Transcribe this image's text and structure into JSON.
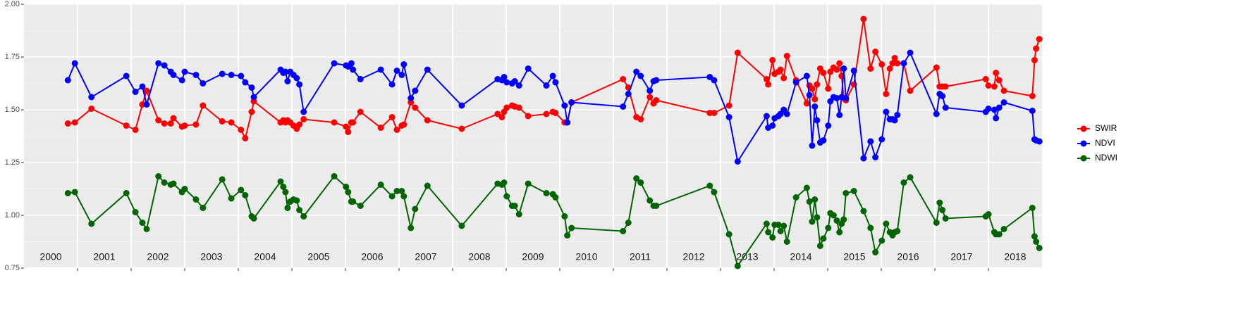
{
  "chart_data": {
    "type": "line",
    "year_labels": [
      "2000",
      "2001",
      "2002",
      "2003",
      "2004",
      "2005",
      "2006",
      "2007",
      "2008",
      "2009",
      "2010",
      "2011",
      "2012",
      "2013",
      "2014",
      "2015",
      "2016",
      "2017",
      "2018"
    ],
    "x": [
      2000.82,
      2000.95,
      2001.26,
      2001.91,
      2002.08,
      2002.21,
      2002.29,
      2002.51,
      2002.62,
      2002.74,
      2002.79,
      2002.95,
      2003.0,
      2003.21,
      2003.34,
      2003.7,
      2003.87,
      2004.05,
      2004.13,
      2004.25,
      2004.29,
      2004.79,
      2004.84,
      2004.88,
      2004.92,
      2004.97,
      2005.03,
      2005.09,
      2005.14,
      2005.22,
      2005.79,
      2006.01,
      2006.05,
      2006.11,
      2006.14,
      2006.28,
      2006.66,
      2006.87,
      2006.96,
      2007.05,
      2007.09,
      2007.22,
      2007.3,
      2007.53,
      2008.17,
      2008.84,
      2008.92,
      2008.96,
      2009.01,
      2009.11,
      2009.16,
      2009.24,
      2009.41,
      2009.75,
      2009.87,
      2009.92,
      2010.09,
      2010.14,
      2010.22,
      2011.18,
      2011.28,
      2011.43,
      2011.51,
      2011.68,
      2011.75,
      2011.8,
      2012.8,
      2012.88,
      2013.16,
      2013.32,
      2013.86,
      2013.89,
      2013.97,
      2014.01,
      2014.08,
      2014.12,
      2014.18,
      2014.24,
      2014.41,
      2014.61,
      2014.66,
      2014.71,
      2014.76,
      2014.8,
      2014.86,
      2014.92,
      2015.01,
      2015.05,
      2015.11,
      2015.17,
      2015.22,
      2015.26,
      2015.3,
      2015.34,
      2015.49,
      2015.67,
      2015.8,
      2015.89,
      2016.01,
      2016.09,
      2016.16,
      2016.21,
      2016.25,
      2016.3,
      2016.42,
      2016.54,
      2017.03,
      2017.09,
      2017.14,
      2017.2,
      2017.95,
      2018.0,
      2018.11,
      2018.14,
      2018.2,
      2018.29,
      2018.82,
      2018.86,
      2018.89,
      2018.95
    ],
    "series": [
      {
        "name": "SWIR",
        "color": "#ff0000",
        "values": [
          1.435,
          1.44,
          1.505,
          1.425,
          1.405,
          1.525,
          1.59,
          1.45,
          1.435,
          1.435,
          1.46,
          1.42,
          1.425,
          1.43,
          1.52,
          1.445,
          1.44,
          1.405,
          1.365,
          1.49,
          1.54,
          1.44,
          1.45,
          1.44,
          1.45,
          1.44,
          1.425,
          1.41,
          1.43,
          1.455,
          1.44,
          1.42,
          1.395,
          1.44,
          1.44,
          1.49,
          1.415,
          1.465,
          1.405,
          1.425,
          1.43,
          1.535,
          1.51,
          1.45,
          1.41,
          1.48,
          1.465,
          1.49,
          1.51,
          1.52,
          1.515,
          1.51,
          1.47,
          1.48,
          1.49,
          1.485,
          1.44,
          1.44,
          1.535,
          1.645,
          1.605,
          1.465,
          1.455,
          1.56,
          1.53,
          1.545,
          1.485,
          1.485,
          1.52,
          1.77,
          1.645,
          1.62,
          1.735,
          1.67,
          1.68,
          1.69,
          1.65,
          1.755,
          1.64,
          1.53,
          1.615,
          1.6,
          1.55,
          1.62,
          1.695,
          1.675,
          1.6,
          1.68,
          1.7,
          1.69,
          1.72,
          1.66,
          1.555,
          1.545,
          1.62,
          1.93,
          1.695,
          1.775,
          1.715,
          1.575,
          1.695,
          1.72,
          1.745,
          1.72,
          1.72,
          1.59,
          1.7,
          1.61,
          1.61,
          1.61,
          1.645,
          1.615,
          1.61,
          1.675,
          1.64,
          1.59,
          1.565,
          1.735,
          1.79,
          1.835
        ]
      },
      {
        "name": "NDVI",
        "color": "#0000ff",
        "values": [
          1.64,
          1.72,
          1.56,
          1.66,
          1.585,
          1.61,
          1.525,
          1.72,
          1.71,
          1.68,
          1.665,
          1.64,
          1.68,
          1.665,
          1.625,
          1.67,
          1.665,
          1.66,
          1.63,
          1.605,
          1.56,
          1.69,
          1.675,
          1.68,
          1.635,
          1.68,
          1.665,
          1.65,
          1.62,
          1.49,
          1.72,
          1.71,
          1.705,
          1.72,
          1.69,
          1.645,
          1.69,
          1.62,
          1.685,
          1.665,
          1.715,
          1.555,
          1.59,
          1.69,
          1.52,
          1.645,
          1.64,
          1.655,
          1.63,
          1.625,
          1.635,
          1.615,
          1.695,
          1.615,
          1.66,
          1.63,
          1.52,
          1.44,
          1.535,
          1.515,
          1.575,
          1.68,
          1.66,
          1.59,
          1.635,
          1.64,
          1.655,
          1.64,
          1.465,
          1.255,
          1.47,
          1.415,
          1.425,
          1.46,
          1.47,
          1.48,
          1.5,
          1.48,
          1.63,
          1.66,
          1.57,
          1.33,
          1.515,
          1.45,
          1.345,
          1.355,
          1.425,
          1.54,
          1.56,
          1.555,
          1.475,
          1.56,
          1.695,
          1.555,
          1.685,
          1.27,
          1.35,
          1.275,
          1.36,
          1.49,
          1.455,
          1.455,
          1.45,
          1.475,
          1.72,
          1.77,
          1.48,
          1.575,
          1.565,
          1.51,
          1.49,
          1.505,
          1.5,
          1.46,
          1.51,
          1.535,
          1.495,
          1.36,
          1.355,
          1.35
        ]
      },
      {
        "name": "NDWI",
        "color": "#006400",
        "values": [
          1.105,
          1.11,
          0.96,
          1.105,
          1.015,
          0.965,
          0.935,
          1.185,
          1.155,
          1.145,
          1.15,
          1.11,
          1.125,
          1.075,
          1.035,
          1.17,
          1.08,
          1.12,
          1.095,
          0.995,
          0.985,
          1.16,
          1.135,
          1.11,
          1.035,
          1.065,
          1.075,
          1.07,
          1.025,
          0.995,
          1.185,
          1.135,
          1.11,
          1.065,
          1.065,
          1.045,
          1.145,
          1.09,
          1.115,
          1.115,
          1.09,
          0.94,
          1.03,
          1.14,
          0.95,
          1.15,
          1.145,
          1.155,
          1.09,
          1.045,
          1.045,
          1.005,
          1.15,
          1.105,
          1.1,
          1.085,
          0.995,
          0.905,
          0.94,
          0.925,
          0.965,
          1.175,
          1.155,
          1.07,
          1.045,
          1.045,
          1.14,
          1.11,
          0.91,
          0.76,
          0.96,
          0.92,
          0.895,
          0.955,
          0.955,
          0.925,
          0.95,
          0.875,
          1.085,
          1.13,
          1.065,
          0.97,
          1.075,
          0.99,
          0.855,
          0.89,
          0.94,
          1.01,
          1.0,
          0.975,
          0.92,
          0.96,
          0.98,
          1.105,
          1.115,
          1.02,
          0.94,
          0.825,
          0.88,
          0.96,
          0.92,
          0.905,
          0.92,
          0.925,
          1.155,
          1.18,
          0.965,
          1.06,
          1.025,
          0.985,
          0.995,
          1.005,
          0.92,
          0.91,
          0.91,
          0.935,
          1.035,
          0.9,
          0.875,
          0.845
        ]
      }
    ],
    "xlim": [
      2000,
      2019
    ],
    "xticks": [
      2001,
      2002,
      2003,
      2004,
      2005,
      2006,
      2007,
      2008,
      2009,
      2010,
      2011,
      2012,
      2013,
      2014,
      2015,
      2016,
      2017,
      2018
    ],
    "ylim": [
      0.75,
      2.0
    ],
    "yticks": [
      {
        "value": 0.75,
        "label": "0.75"
      },
      {
        "value": 1.0,
        "label": "1.00"
      },
      {
        "value": 1.25,
        "label": "1.25"
      },
      {
        "value": 1.5,
        "label": "1.50"
      },
      {
        "value": 1.75,
        "label": "1.75"
      },
      {
        "value": 2.0,
        "label": "2.00"
      }
    ],
    "grid": true
  }
}
